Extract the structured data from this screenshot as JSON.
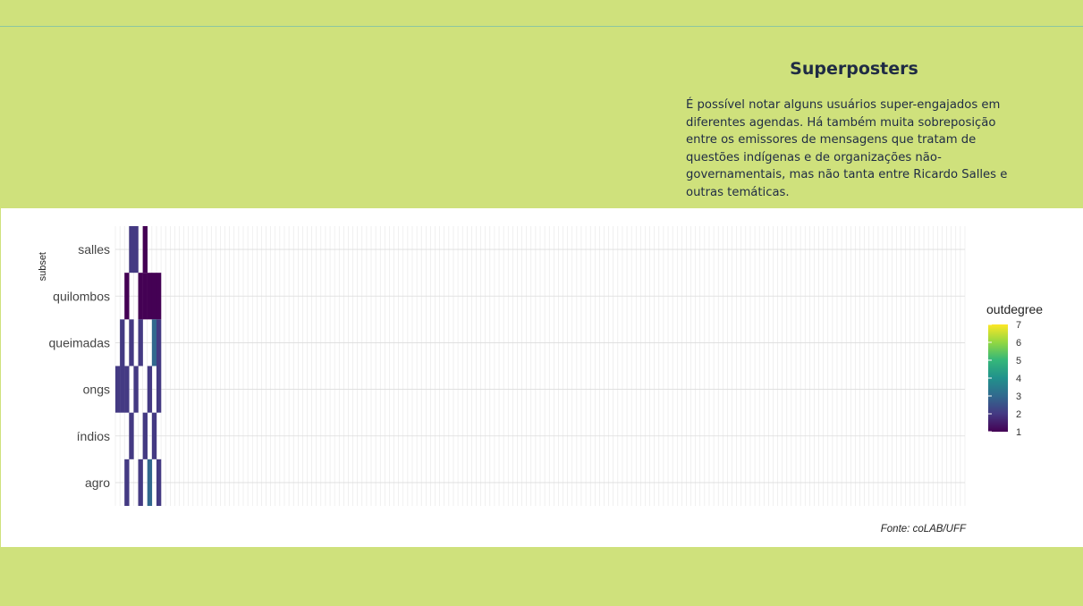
{
  "page": {
    "title": "Superposters",
    "description": "É possível notar alguns usuários super-engajados em diferentes agendas. Há também muita sobreposição entre os emissores de mensagens que tratam de questões indígenas e de organizações não-governamentais, mas não tanta entre Ricardo Salles e outras temáticas.",
    "source": "Fonte: coLAB/UFF"
  },
  "colors": {
    "background": "#cfe17c",
    "panel": "#ffffff",
    "text": "#1f2b44",
    "rule": "#8cc6a0"
  },
  "chart_data": {
    "type": "heatmap",
    "ylabel": "subset",
    "xlabel": "",
    "y_categories": [
      "agro",
      "índios",
      "ongs",
      "queimadas",
      "quilombos",
      "salles"
    ],
    "legend": {
      "title": "outdegree",
      "min": 1,
      "max": 7,
      "ticks": [
        1,
        2,
        3,
        4,
        5,
        6,
        7
      ],
      "colormap": "viridis",
      "placement": "right"
    },
    "x_users_count": 186,
    "grid": true,
    "note": "Each column is one user; cells colored by outdegree in each subset, blank where the user did not post.",
    "cells": [
      {
        "user": 1,
        "subset": "ongs",
        "outdegree": 2
      },
      {
        "user": 2,
        "subset": "queimadas",
        "outdegree": 2
      },
      {
        "user": 2,
        "subset": "ongs",
        "outdegree": 2
      },
      {
        "user": 3,
        "subset": "quilombos",
        "outdegree": 1
      },
      {
        "user": 3,
        "subset": "ongs",
        "outdegree": 2
      },
      {
        "user": 3,
        "subset": "agro",
        "outdegree": 2
      },
      {
        "user": 4,
        "subset": "salles",
        "outdegree": 2
      },
      {
        "user": 4,
        "subset": "queimadas",
        "outdegree": 2
      },
      {
        "user": 4,
        "subset": "índios",
        "outdegree": 2
      },
      {
        "user": 5,
        "subset": "salles",
        "outdegree": 2
      },
      {
        "user": 5,
        "subset": "ongs",
        "outdegree": 2
      },
      {
        "user": 6,
        "subset": "quilombos",
        "outdegree": 1
      },
      {
        "user": 6,
        "subset": "queimadas",
        "outdegree": 2
      },
      {
        "user": 6,
        "subset": "agro",
        "outdegree": 2
      },
      {
        "user": 7,
        "subset": "salles",
        "outdegree": 1
      },
      {
        "user": 7,
        "subset": "quilombos",
        "outdegree": 1
      },
      {
        "user": 7,
        "subset": "índios",
        "outdegree": 2
      },
      {
        "user": 8,
        "subset": "quilombos",
        "outdegree": 1
      },
      {
        "user": 8,
        "subset": "ongs",
        "outdegree": 2
      },
      {
        "user": 8,
        "subset": "agro",
        "outdegree": 3
      },
      {
        "user": 9,
        "subset": "quilombos",
        "outdegree": 1
      },
      {
        "user": 9,
        "subset": "queimadas",
        "outdegree": 3
      },
      {
        "user": 9,
        "subset": "índios",
        "outdegree": 2
      },
      {
        "user": 10,
        "subset": "quilombos",
        "outdegree": 1
      },
      {
        "user": 10,
        "subset": "queimadas",
        "outdegree": 2
      },
      {
        "user": 10,
        "subset": "ongs",
        "outdegree": 2
      },
      {
        "user": 10,
        "subset": "agro",
        "outdegree": 2
      }
    ]
  }
}
